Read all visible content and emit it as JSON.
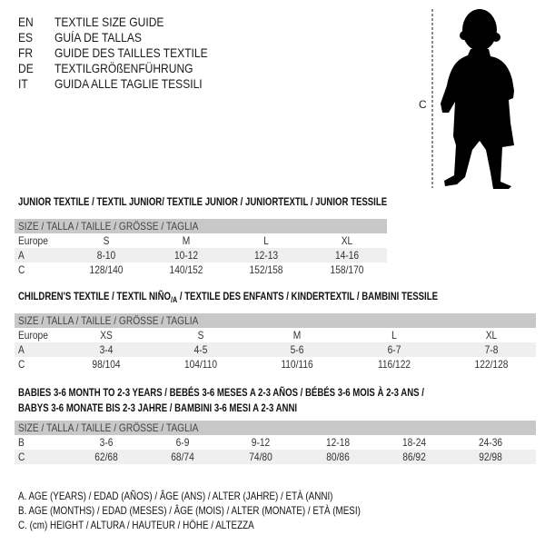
{
  "languages": [
    {
      "code": "EN",
      "text": "TEXTILE SIZE GUIDE"
    },
    {
      "code": "ES",
      "text": "GUÍA DE TALLAS"
    },
    {
      "code": "FR",
      "text": "GUIDE DES TAILLES TEXTILE"
    },
    {
      "code": "DE",
      "text": "TEXTILGRÖßENFÜHRUNG"
    },
    {
      "code": "IT",
      "text": "GUIDA ALLE TAGLIE TESSILI"
    }
  ],
  "figure": {
    "measure_label": "C",
    "icon": "baby-silhouette"
  },
  "size_header": "SIZE / TALLA / TAILLE / GRÖSSE / TAGLIA",
  "junior": {
    "title": "JUNIOR TEXTILE / TEXTIL JUNIOR/ TEXTILE JUNIOR / JUNIORTEXTIL / JUNIOR TESSILE",
    "rows": [
      {
        "label": "Europe",
        "values": [
          "S",
          "M",
          "L",
          "XL"
        ]
      },
      {
        "label": "A",
        "values": [
          "8-10",
          "10-12",
          "12-13",
          "14-16"
        ]
      },
      {
        "label": "C",
        "values": [
          "128/140",
          "140/152",
          "152/158",
          "158/170"
        ]
      }
    ]
  },
  "children": {
    "title_a": "CHILDREN'S TEXTILE / TEXTIL NIÑO",
    "title_sub": "/A",
    "title_b": " / TEXTILE DES ENFANTS / KINDERTEXTIL / BAMBINI TESSILE",
    "rows": [
      {
        "label": "Europe",
        "values": [
          "XS",
          "S",
          "M",
          "L",
          "XL"
        ]
      },
      {
        "label": "A",
        "values": [
          "3-4",
          "4-5",
          "5-6",
          "6-7",
          "7-8"
        ]
      },
      {
        "label": "C",
        "values": [
          "98/104",
          "104/110",
          "110/116",
          "116/122",
          "122/128"
        ]
      }
    ]
  },
  "babies": {
    "title_line1": "BABIES 3-6 MONTH TO 2-3 YEARS / BEBÉS 3-6 MESES A 2-3 AÑOS / BÉBÉS 3-6 MOIS À 2-3 ANS /",
    "title_line2": "BABYS 3-6 MONATE BIS 2-3 JAHRE / BAMBINI 3-6 MESI A 2-3 ANNI",
    "rows": [
      {
        "label": "B",
        "values": [
          "3-6",
          "6-9",
          "9-12",
          "12-18",
          "18-24",
          "24-36"
        ]
      },
      {
        "label": "C",
        "values": [
          "62/68",
          "68/74",
          "74/80",
          "80/86",
          "86/92",
          "92/98"
        ]
      }
    ]
  },
  "legend": [
    "A. AGE (YEARS) / EDAD (AÑOS) / ÂGE (ANS) / ALTER (JAHRE) / ETÀ (ANNI)",
    "B. AGE (MONTHS) / EDAD (MESES) / ÂGE (MOIS) / ALTER (MONATE) / ETÀ (MESI)",
    "C. (cm) HEIGHT / ALTURA / HAUTEUR / HÖHE / ALTEZZA"
  ]
}
